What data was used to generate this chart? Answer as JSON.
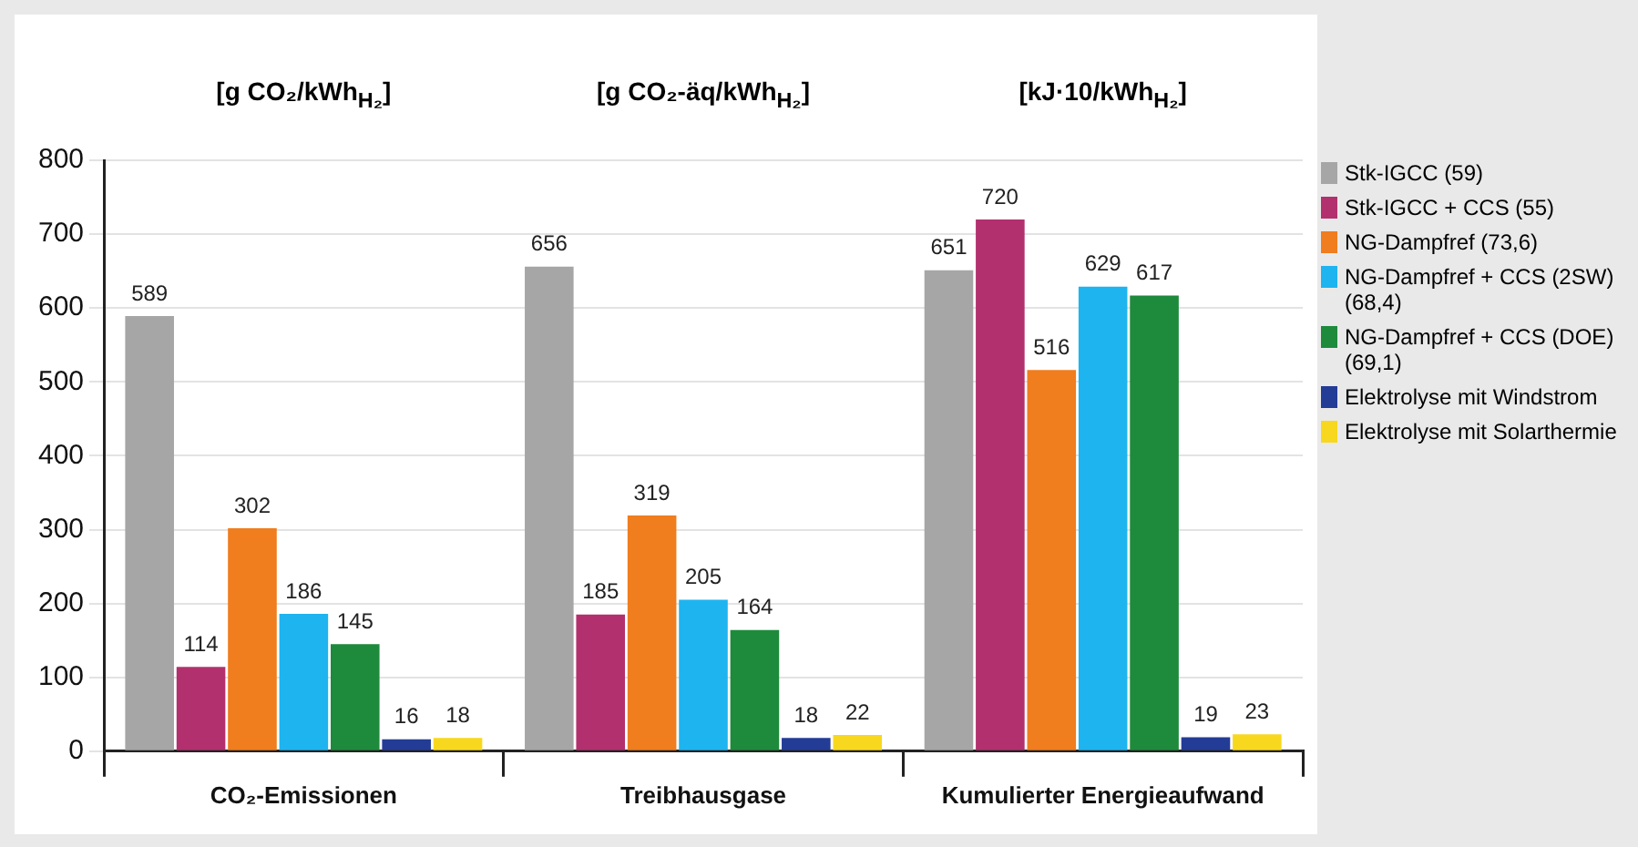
{
  "chart_data": {
    "type": "bar",
    "categories": [
      "CO₂-Emissionen",
      "Treibhausgase",
      "Kumulierter Energieaufwand"
    ],
    "annotations": [
      "[g CO₂/kWh$_{H₂}$]",
      "[g CO₂-äq/kWh$_{H₂}$]",
      "[kJ·10/kWh$_{H₂}$]"
    ],
    "series": [
      {
        "name": "Stk-IGCC (59)",
        "color": "#a6a6a6",
        "values": [
          589,
          656,
          651
        ]
      },
      {
        "name": "Stk-IGCC + CCS (55)",
        "color": "#b3306e",
        "values": [
          114,
          185,
          720
        ]
      },
      {
        "name": "NG-Dampfref (73,6)",
        "color": "#f07d1e",
        "values": [
          302,
          319,
          516
        ]
      },
      {
        "name": "NG-Dampfref + CCS (2SW) (68,4)",
        "color": "#1eb4f0",
        "values": [
          186,
          205,
          629
        ]
      },
      {
        "name": "NG-Dampfref + CCS (DOE) (69,1)",
        "color": "#1e8a3c",
        "values": [
          145,
          164,
          617
        ]
      },
      {
        "name": "Elektrolyse mit Windstrom",
        "color": "#233c96",
        "values": [
          16,
          18,
          19
        ]
      },
      {
        "name": "Elektrolyse mit Solarthermie",
        "color": "#f8d81e",
        "values": [
          18,
          22,
          23
        ]
      }
    ],
    "ylim": [
      0,
      800
    ],
    "yticks": [
      0,
      100,
      200,
      300,
      400,
      500,
      600,
      700,
      800
    ],
    "grid": "y",
    "legend": "right",
    "data_labels": true
  }
}
